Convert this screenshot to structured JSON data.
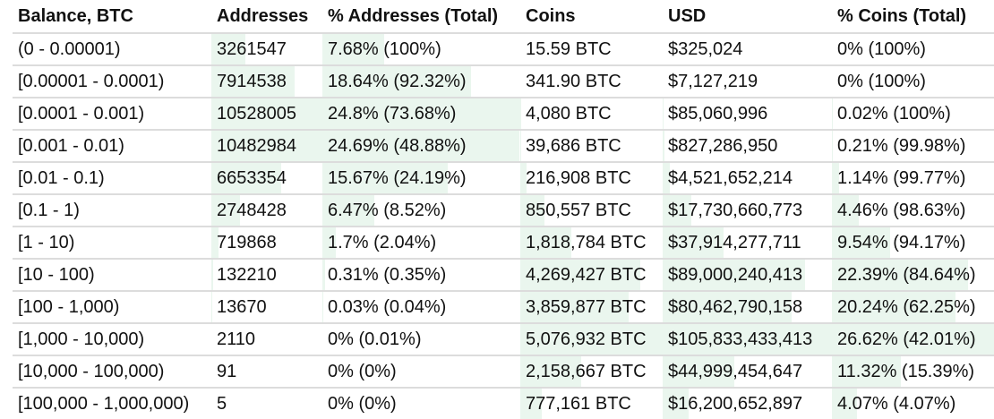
{
  "table": {
    "headers": [
      "Balance, BTC",
      "Addresses",
      "% Addresses (Total)",
      "Coins",
      "USD",
      "% Coins (Total)"
    ],
    "bar_color": "#eaf6ee",
    "rows": [
      {
        "balance": "(0 - 0.00001)",
        "addresses": "3261547",
        "pct_addresses": "7.68% (100%)",
        "coins": "15.59 BTC",
        "usd": "$325,024",
        "pct_coins": "0% (100%)",
        "bars": [
          31,
          31,
          0,
          0,
          0
        ]
      },
      {
        "balance": "[0.00001 - 0.0001)",
        "addresses": "7914538",
        "pct_addresses": "18.64% (92.32%)",
        "coins": "341.90 BTC",
        "usd": "$7,127,219",
        "pct_coins": "0% (100%)",
        "bars": [
          75.2,
          75.2,
          0,
          0,
          0
        ]
      },
      {
        "balance": "[0.0001 - 0.001)",
        "addresses": "10528005",
        "pct_addresses": "24.8% (73.68%)",
        "coins": "4,080 BTC",
        "usd": "$85,060,996",
        "pct_coins": "0.02% (100%)",
        "bars": [
          100,
          100,
          0.1,
          0.1,
          0.1
        ]
      },
      {
        "balance": "[0.001 - 0.01)",
        "addresses": "10482984",
        "pct_addresses": "24.69% (48.88%)",
        "coins": "39,686 BTC",
        "usd": "$827,286,950",
        "pct_coins": "0.21% (99.98%)",
        "bars": [
          99.6,
          99.6,
          0.8,
          0.8,
          0.8
        ]
      },
      {
        "balance": "[0.01 - 0.1)",
        "addresses": "6653354",
        "pct_addresses": "15.67% (24.19%)",
        "coins": "216,908 BTC",
        "usd": "$4,521,652,214",
        "pct_coins": "1.14% (99.77%)",
        "bars": [
          63.2,
          63.2,
          4.3,
          4.3,
          4.3
        ]
      },
      {
        "balance": "[0.1 - 1)",
        "addresses": "2748428",
        "pct_addresses": "6.47% (8.52%)",
        "coins": "850,557 BTC",
        "usd": "$17,730,660,773",
        "pct_coins": "4.46% (98.63%)",
        "bars": [
          26.1,
          26.1,
          16.8,
          16.8,
          16.8
        ]
      },
      {
        "balance": "[1 - 10)",
        "addresses": "719868",
        "pct_addresses": "1.7% (2.04%)",
        "coins": "1,818,784 BTC",
        "usd": "$37,914,277,711",
        "pct_coins": "9.54% (94.17%)",
        "bars": [
          6.8,
          6.9,
          35.8,
          35.8,
          35.8
        ]
      },
      {
        "balance": "[10 - 100)",
        "addresses": "132210",
        "pct_addresses": "0.31% (0.35%)",
        "coins": "4,269,427 BTC",
        "usd": "$89,000,240,413",
        "pct_coins": "22.39% (84.64%)",
        "bars": [
          1.3,
          1.3,
          84.1,
          84.1,
          84.1
        ]
      },
      {
        "balance": "[100 - 1,000)",
        "addresses": "13670",
        "pct_addresses": "0.03% (0.04%)",
        "coins": "3,859,877 BTC",
        "usd": "$80,462,790,158",
        "pct_coins": "20.24% (62.25%)",
        "bars": [
          0.1,
          0.1,
          76,
          76,
          76
        ]
      },
      {
        "balance": "[1,000 - 10,000)",
        "addresses": "2110",
        "pct_addresses": "0% (0.01%)",
        "coins": "5,076,932 BTC",
        "usd": "$105,833,433,413",
        "pct_coins": "26.62% (42.01%)",
        "bars": [
          0,
          0,
          100,
          100,
          100
        ]
      },
      {
        "balance": "[10,000 - 100,000)",
        "addresses": "91",
        "pct_addresses": "0% (0%)",
        "coins": "2,158,667 BTC",
        "usd": "$44,999,454,647",
        "pct_coins": "11.32% (15.39%)",
        "bars": [
          0,
          0,
          42.5,
          42.5,
          42.5
        ]
      },
      {
        "balance": "[100,000 - 1,000,000)",
        "addresses": "5",
        "pct_addresses": "0% (0%)",
        "coins": "777,161 BTC",
        "usd": "$16,200,652,897",
        "pct_coins": "4.07% (4.07%)",
        "bars": [
          0,
          0,
          15.3,
          15.3,
          15.3
        ]
      }
    ]
  }
}
